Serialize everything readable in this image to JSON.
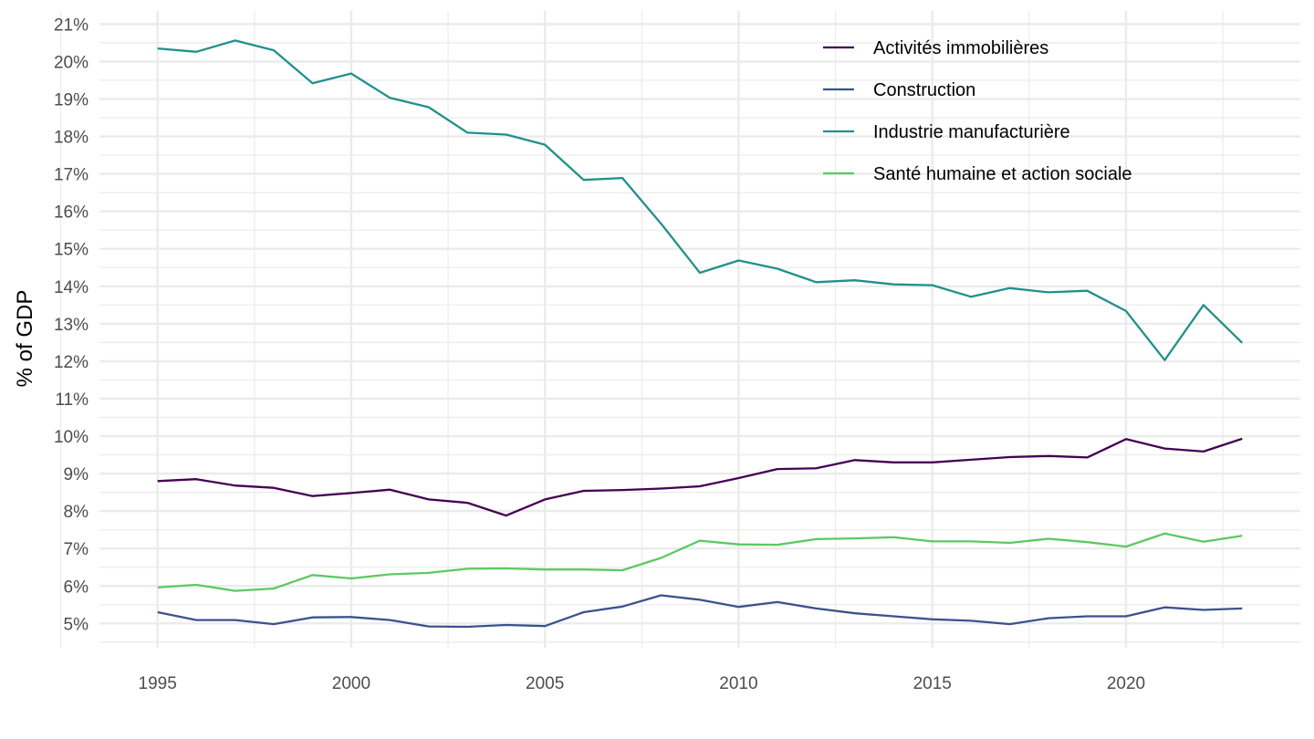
{
  "chart_data": {
    "type": "line",
    "title": "",
    "xlabel": "",
    "ylabel": "% of GDP",
    "xlim": [
      1993.5,
      2024.5
    ],
    "ylim": [
      4.35,
      21.35
    ],
    "x_ticks": [
      1995,
      2000,
      2005,
      2010,
      2015,
      2020
    ],
    "x_tick_labels": [
      "1995",
      "2000",
      "2005",
      "2010",
      "2015",
      "2020"
    ],
    "y_ticks": [
      5,
      6,
      7,
      8,
      9,
      10,
      11,
      12,
      13,
      14,
      15,
      16,
      17,
      18,
      19,
      20,
      21
    ],
    "y_tick_labels": [
      "5%",
      "6%",
      "7%",
      "8%",
      "9%",
      "10%",
      "11%",
      "12%",
      "13%",
      "14%",
      "15%",
      "16%",
      "17%",
      "18%",
      "19%",
      "20%",
      "21%"
    ],
    "grid": true,
    "legend_position": "top-right",
    "x": [
      1995,
      1996,
      1997,
      1998,
      1999,
      2000,
      2001,
      2002,
      2003,
      2004,
      2005,
      2006,
      2007,
      2008,
      2009,
      2010,
      2011,
      2012,
      2013,
      2014,
      2015,
      2016,
      2017,
      2018,
      2019,
      2020,
      2021,
      2022,
      2023
    ],
    "series": [
      {
        "name": "Activités immobilières",
        "color": "#440154",
        "values": [
          8.8,
          8.85,
          8.68,
          8.62,
          8.4,
          8.48,
          8.57,
          8.31,
          8.22,
          7.88,
          8.31,
          8.54,
          8.56,
          8.6,
          8.66,
          8.88,
          9.12,
          9.14,
          9.36,
          9.3,
          9.3,
          9.37,
          9.44,
          9.47,
          9.43,
          9.92,
          9.67,
          9.59,
          9.93
        ]
      },
      {
        "name": "Construction",
        "color": "#3B528B",
        "values": [
          5.3,
          5.09,
          5.09,
          4.98,
          5.16,
          5.17,
          5.09,
          4.92,
          4.91,
          4.96,
          4.93,
          5.3,
          5.45,
          5.75,
          5.63,
          5.44,
          5.57,
          5.4,
          5.27,
          5.19,
          5.11,
          5.07,
          4.98,
          5.14,
          5.19,
          5.19,
          5.43,
          5.36,
          5.4
        ]
      },
      {
        "name": "Industrie manufacturière",
        "color": "#21908C",
        "values": [
          20.35,
          20.26,
          20.56,
          20.3,
          19.42,
          19.68,
          19.03,
          18.78,
          18.1,
          18.05,
          17.78,
          16.84,
          16.89,
          15.67,
          14.36,
          14.69,
          14.47,
          14.11,
          14.16,
          14.05,
          14.03,
          13.72,
          13.95,
          13.84,
          13.88,
          13.34,
          12.03,
          13.5,
          12.49
        ]
      },
      {
        "name": "Santé humaine et action sociale",
        "color": "#5DC863",
        "values": [
          5.96,
          6.03,
          5.87,
          5.93,
          6.29,
          6.2,
          6.31,
          6.35,
          6.46,
          6.47,
          6.44,
          6.44,
          6.42,
          6.75,
          7.21,
          7.11,
          7.1,
          7.25,
          7.27,
          7.3,
          7.19,
          7.19,
          7.15,
          7.26,
          7.17,
          7.05,
          7.4,
          7.18,
          7.34
        ]
      }
    ]
  }
}
